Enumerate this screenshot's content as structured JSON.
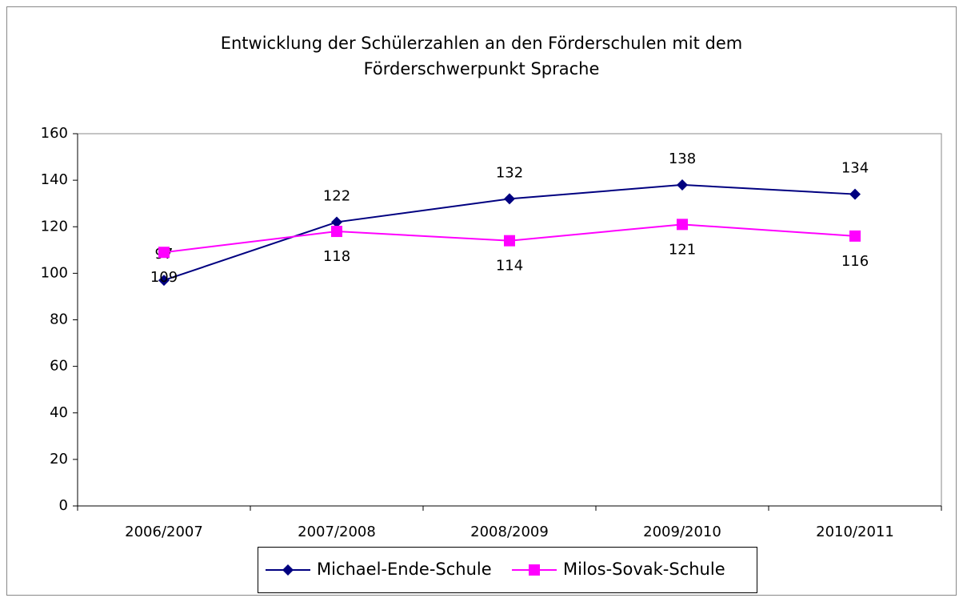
{
  "chart_data": {
    "type": "line",
    "title": "Entwicklung der Schülerzahlen an den Förderschulen mit dem Förderschwerpunkt Sprache",
    "categories": [
      "2006/2007",
      "2007/2008",
      "2008/2009",
      "2009/2010",
      "2010/2011"
    ],
    "series": [
      {
        "name": "Michael-Ende-Schule",
        "color": "#000080",
        "marker": "diamond",
        "values": [
          97,
          122,
          132,
          138,
          134
        ]
      },
      {
        "name": "Milos-Sovak-Schule",
        "color": "#ff00ff",
        "marker": "square",
        "values": [
          109,
          118,
          114,
          121,
          116
        ]
      }
    ],
    "ylim": [
      0,
      160
    ],
    "yticks": [
      0,
      20,
      40,
      60,
      80,
      100,
      120,
      140,
      160
    ],
    "legend": "bottom"
  }
}
